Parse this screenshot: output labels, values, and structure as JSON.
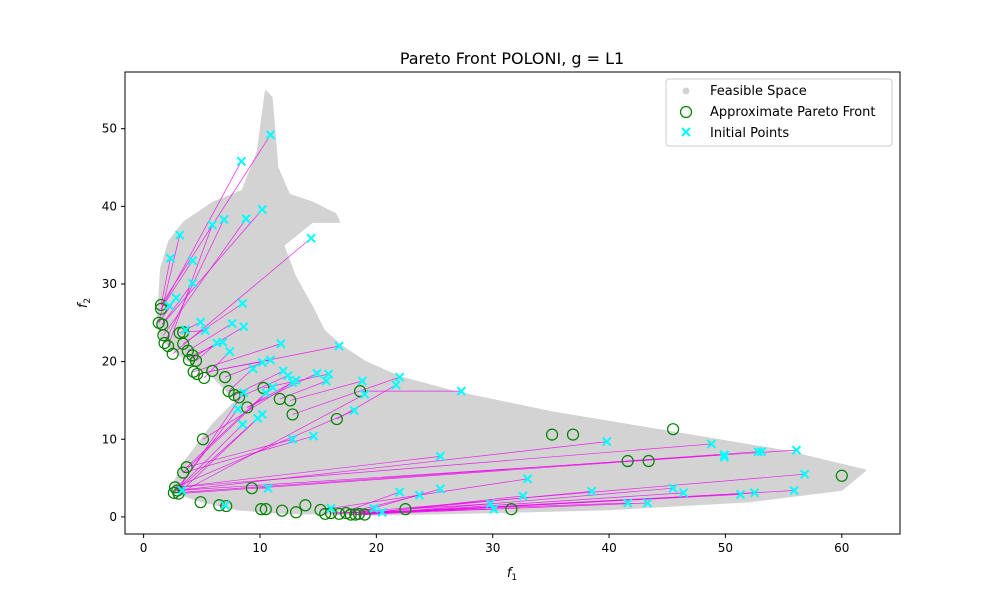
{
  "chart_data": {
    "type": "scatter",
    "title": "Pareto Front POLONI, g = L1",
    "xlabel_main": "f",
    "xlabel_sub": "1",
    "ylabel_main": "f",
    "ylabel_sub": "2",
    "xlim": [
      -1.6,
      65
    ],
    "ylim": [
      -2.2,
      57.3
    ],
    "xticks": [
      0,
      10,
      20,
      30,
      40,
      50,
      60
    ],
    "yticks": [
      0,
      10,
      20,
      30,
      40,
      50
    ],
    "grid": false,
    "legend_position": "top-right",
    "colors": {
      "feasible": "#d3d3d3",
      "front": "#008000",
      "initial": "#00ffff",
      "connector": "#ee00ee"
    },
    "legend": [
      {
        "label": "Feasible Space",
        "marker": "dot"
      },
      {
        "label": "Approximate Pareto Front",
        "marker": "circle"
      },
      {
        "label": "Initial Points",
        "marker": "x"
      }
    ],
    "feasible_region_outline": [
      [
        1.3,
        27
      ],
      [
        1.5,
        32
      ],
      [
        2.2,
        35.5
      ],
      [
        3.5,
        38
      ],
      [
        6,
        40.5
      ],
      [
        8.5,
        42
      ],
      [
        9.8,
        47
      ],
      [
        10.5,
        54.8
      ],
      [
        11,
        54
      ],
      [
        11.5,
        45
      ],
      [
        12.5,
        41.5
      ],
      [
        14.5,
        40.5
      ],
      [
        16.5,
        39
      ],
      [
        16.8,
        38
      ],
      [
        14.5,
        38
      ],
      [
        12,
        35
      ],
      [
        13,
        31
      ],
      [
        14.5,
        27
      ],
      [
        15.5,
        24
      ],
      [
        17,
        22
      ],
      [
        19,
        20
      ],
      [
        22,
        18
      ],
      [
        27,
        16
      ],
      [
        35,
        13.5
      ],
      [
        45,
        11
      ],
      [
        55,
        8.5
      ],
      [
        62,
        6
      ],
      [
        60,
        3.5
      ],
      [
        52,
        2
      ],
      [
        40,
        1
      ],
      [
        30,
        0.6
      ],
      [
        20,
        0.3
      ],
      [
        12,
        0.5
      ],
      [
        8,
        1
      ],
      [
        5,
        2
      ],
      [
        3,
        3
      ],
      [
        2.5,
        4
      ],
      [
        3.5,
        7
      ],
      [
        6,
        12
      ],
      [
        8,
        15
      ],
      [
        6,
        18
      ],
      [
        3,
        21
      ],
      [
        1.5,
        23
      ],
      [
        1.2,
        25
      ]
    ],
    "approximate_pareto_front": [
      [
        1.5,
        27.3
      ],
      [
        1.5,
        26.8
      ],
      [
        1.3,
        25
      ],
      [
        1.6,
        24.8
      ],
      [
        1.7,
        23.4
      ],
      [
        1.8,
        22.4
      ],
      [
        2.1,
        22
      ],
      [
        2.5,
        21
      ],
      [
        3.1,
        23.7
      ],
      [
        3.4,
        23.8
      ],
      [
        3.4,
        22.3
      ],
      [
        3.8,
        21.4
      ],
      [
        3.9,
        20.2
      ],
      [
        4.2,
        20.8
      ],
      [
        4.5,
        20.1
      ],
      [
        4.3,
        18.7
      ],
      [
        4.6,
        18.4
      ],
      [
        5.2,
        17.9
      ],
      [
        5.9,
        18.8
      ],
      [
        7.0,
        18
      ],
      [
        7.3,
        16.2
      ],
      [
        7.8,
        15.7
      ],
      [
        8.2,
        15.4
      ],
      [
        8.9,
        14.1
      ],
      [
        10.3,
        16.6
      ],
      [
        11.7,
        15.2
      ],
      [
        12.6,
        15
      ],
      [
        12.8,
        13.2
      ],
      [
        16.6,
        12.6
      ],
      [
        18.6,
        16.2
      ],
      [
        5.1,
        10
      ],
      [
        3.4,
        5.7
      ],
      [
        3.7,
        6.4
      ],
      [
        2.9,
        3.4
      ],
      [
        2.6,
        3.1
      ],
      [
        3.0,
        3.0
      ],
      [
        2.7,
        3.8
      ],
      [
        9.3,
        3.7
      ],
      [
        4.9,
        1.9
      ],
      [
        6.5,
        1.5
      ],
      [
        7.1,
        1.4
      ],
      [
        10.1,
        1.0
      ],
      [
        10.5,
        1.0
      ],
      [
        11.9,
        0.8
      ],
      [
        13.1,
        0.6
      ],
      [
        13.9,
        1.5
      ],
      [
        15.2,
        0.9
      ],
      [
        15.6,
        0.4
      ],
      [
        16.1,
        0.5
      ],
      [
        16.8,
        0.4
      ],
      [
        17.4,
        0.5
      ],
      [
        17.8,
        0.3
      ],
      [
        18.2,
        0.3
      ],
      [
        18.5,
        0.4
      ],
      [
        19.0,
        0.3
      ],
      [
        22.5,
        1.0
      ],
      [
        31.6,
        1.0
      ],
      [
        35.1,
        10.6
      ],
      [
        36.9,
        10.6
      ],
      [
        41.6,
        7.2
      ],
      [
        43.4,
        7.2
      ],
      [
        45.5,
        11.3
      ],
      [
        60.0,
        5.3
      ]
    ],
    "initial_points": [
      [
        10.9,
        49.2
      ],
      [
        8.4,
        45.8
      ],
      [
        10.2,
        39.6
      ],
      [
        8.8,
        38.4
      ],
      [
        6.9,
        38.3
      ],
      [
        5.9,
        37.6
      ],
      [
        3.1,
        36.3
      ],
      [
        14.4,
        35.9
      ],
      [
        4.2,
        33.0
      ],
      [
        2.3,
        33.3
      ],
      [
        4.2,
        30.1
      ],
      [
        2.8,
        28.2
      ],
      [
        8.5,
        27.5
      ],
      [
        2.2,
        27.2
      ],
      [
        4.9,
        25.1
      ],
      [
        7.6,
        24.9
      ],
      [
        8.6,
        24.5
      ],
      [
        5.3,
        24.0
      ],
      [
        3.6,
        24.1
      ],
      [
        6.8,
        22.5
      ],
      [
        6.3,
        22.4
      ],
      [
        11.8,
        22.3
      ],
      [
        16.8,
        22.0
      ],
      [
        7.4,
        21.3
      ],
      [
        10.9,
        20.2
      ],
      [
        10.2,
        19.9
      ],
      [
        9.4,
        19.1
      ],
      [
        12.0,
        18.8
      ],
      [
        12.4,
        18.2
      ],
      [
        14.9,
        18.5
      ],
      [
        15.9,
        18.4
      ],
      [
        15.7,
        17.5
      ],
      [
        18.8,
        17.5
      ],
      [
        22.0,
        18.0
      ],
      [
        21.7,
        17.0
      ],
      [
        13.1,
        17.6
      ],
      [
        12.8,
        17.3
      ],
      [
        11.1,
        16.7
      ],
      [
        10.5,
        16.0
      ],
      [
        8.6,
        16.0
      ],
      [
        19.0,
        15.8
      ],
      [
        27.3,
        16.2
      ],
      [
        8.1,
        13.9
      ],
      [
        18.1,
        13.7
      ],
      [
        10.2,
        13.2
      ],
      [
        9.8,
        12.7
      ],
      [
        8.5,
        11.9
      ],
      [
        14.6,
        10.4
      ],
      [
        12.8,
        10.0
      ],
      [
        39.8,
        9.7
      ],
      [
        48.8,
        9.4
      ],
      [
        49.9,
        8.0
      ],
      [
        49.9,
        7.7
      ],
      [
        52.8,
        8.4
      ],
      [
        53.1,
        8.4
      ],
      [
        56.1,
        8.6
      ],
      [
        25.5,
        7.8
      ],
      [
        56.8,
        5.5
      ],
      [
        33.0,
        4.9
      ],
      [
        10.7,
        3.7
      ],
      [
        22.0,
        3.2
      ],
      [
        23.7,
        2.8
      ],
      [
        25.5,
        3.6
      ],
      [
        32.6,
        2.7
      ],
      [
        38.5,
        3.3
      ],
      [
        45.5,
        3.7
      ],
      [
        46.4,
        3.1
      ],
      [
        51.3,
        2.9
      ],
      [
        52.5,
        3.1
      ],
      [
        55.9,
        3.4
      ],
      [
        29.8,
        1.7
      ],
      [
        30.1,
        1.0
      ],
      [
        41.6,
        1.8
      ],
      [
        43.3,
        1.8
      ],
      [
        16.1,
        1.1
      ],
      [
        19.8,
        1.1
      ],
      [
        20.5,
        0.6
      ],
      [
        7.0,
        1.5
      ],
      [
        3.3,
        3.4
      ]
    ],
    "connections": [
      [
        [
          10.9,
          49.2
        ],
        [
          1.5,
          27.3
        ]
      ],
      [
        [
          8.4,
          45.8
        ],
        [
          1.5,
          26.8
        ]
      ],
      [
        [
          10.2,
          39.6
        ],
        [
          1.6,
          24.8
        ]
      ],
      [
        [
          8.8,
          38.4
        ],
        [
          1.7,
          23.4
        ]
      ],
      [
        [
          6.9,
          38.3
        ],
        [
          1.8,
          22.4
        ]
      ],
      [
        [
          5.9,
          37.6
        ],
        [
          2.1,
          22
        ]
      ],
      [
        [
          3.1,
          36.3
        ],
        [
          1.3,
          25
        ]
      ],
      [
        [
          14.4,
          35.9
        ],
        [
          2.5,
          21
        ]
      ],
      [
        [
          4.2,
          33.0
        ],
        [
          1.5,
          26.8
        ]
      ],
      [
        [
          2.3,
          33.3
        ],
        [
          1.5,
          27.3
        ]
      ],
      [
        [
          4.2,
          30.1
        ],
        [
          1.6,
          24.8
        ]
      ],
      [
        [
          2.8,
          28.2
        ],
        [
          1.3,
          25
        ]
      ],
      [
        [
          8.5,
          27.5
        ],
        [
          3.4,
          22.3
        ]
      ],
      [
        [
          2.2,
          27.2
        ],
        [
          1.5,
          27.3
        ]
      ],
      [
        [
          4.9,
          25.1
        ],
        [
          3.1,
          23.7
        ]
      ],
      [
        [
          7.6,
          24.9
        ],
        [
          3.8,
          21.4
        ]
      ],
      [
        [
          8.6,
          24.5
        ],
        [
          3.9,
          20.2
        ]
      ],
      [
        [
          5.3,
          24.0
        ],
        [
          3.4,
          23.8
        ]
      ],
      [
        [
          3.6,
          24.1
        ],
        [
          3.4,
          23.8
        ]
      ],
      [
        [
          6.8,
          22.5
        ],
        [
          4.2,
          20.8
        ]
      ],
      [
        [
          6.3,
          22.4
        ],
        [
          4.5,
          20.1
        ]
      ],
      [
        [
          11.8,
          22.3
        ],
        [
          4.3,
          18.7
        ]
      ],
      [
        [
          16.8,
          22.0
        ],
        [
          4.6,
          18.4
        ]
      ],
      [
        [
          7.4,
          21.3
        ],
        [
          5.2,
          17.9
        ]
      ],
      [
        [
          10.9,
          20.2
        ],
        [
          5.9,
          18.8
        ]
      ],
      [
        [
          10.2,
          19.9
        ],
        [
          7.0,
          18
        ]
      ],
      [
        [
          9.4,
          19.1
        ],
        [
          7.3,
          16.2
        ]
      ],
      [
        [
          12.0,
          18.8
        ],
        [
          7.8,
          15.7
        ]
      ],
      [
        [
          12.4,
          18.2
        ],
        [
          8.2,
          15.4
        ]
      ],
      [
        [
          14.9,
          18.5
        ],
        [
          8.9,
          14.1
        ]
      ],
      [
        [
          15.9,
          18.4
        ],
        [
          10.3,
          16.6
        ]
      ],
      [
        [
          15.7,
          17.5
        ],
        [
          11.7,
          15.2
        ]
      ],
      [
        [
          18.8,
          17.5
        ],
        [
          12.6,
          15
        ]
      ],
      [
        [
          22.0,
          18.0
        ],
        [
          12.8,
          13.2
        ]
      ],
      [
        [
          21.7,
          17.0
        ],
        [
          16.6,
          12.6
        ]
      ],
      [
        [
          27.3,
          16.2
        ],
        [
          18.6,
          16.2
        ]
      ],
      [
        [
          13.1,
          17.6
        ],
        [
          8.9,
          14.1
        ]
      ],
      [
        [
          12.8,
          17.3
        ],
        [
          5.1,
          10
        ]
      ],
      [
        [
          11.1,
          16.7
        ],
        [
          3.4,
          5.7
        ]
      ],
      [
        [
          10.5,
          16.0
        ],
        [
          3.7,
          6.4
        ]
      ],
      [
        [
          8.6,
          16.0
        ],
        [
          2.9,
          3.4
        ]
      ],
      [
        [
          19.0,
          15.8
        ],
        [
          3.0,
          3.0
        ]
      ],
      [
        [
          8.1,
          13.9
        ],
        [
          2.6,
          3.1
        ]
      ],
      [
        [
          18.1,
          13.7
        ],
        [
          2.7,
          3.8
        ]
      ],
      [
        [
          10.2,
          13.2
        ],
        [
          2.9,
          3.4
        ]
      ],
      [
        [
          9.8,
          12.7
        ],
        [
          3.0,
          3.0
        ]
      ],
      [
        [
          8.5,
          11.9
        ],
        [
          2.6,
          3.1
        ]
      ],
      [
        [
          14.6,
          10.4
        ],
        [
          3.4,
          5.7
        ]
      ],
      [
        [
          12.8,
          10.0
        ],
        [
          3.7,
          6.4
        ]
      ],
      [
        [
          39.8,
          9.7
        ],
        [
          2.9,
          3.4
        ]
      ],
      [
        [
          48.8,
          9.4
        ],
        [
          2.7,
          3.8
        ]
      ],
      [
        [
          49.9,
          8.0
        ],
        [
          3.0,
          3.0
        ]
      ],
      [
        [
          52.8,
          8.4
        ],
        [
          2.6,
          3.1
        ]
      ],
      [
        [
          56.1,
          8.6
        ],
        [
          2.9,
          3.4
        ]
      ],
      [
        [
          25.5,
          7.8
        ],
        [
          2.7,
          3.8
        ]
      ],
      [
        [
          56.8,
          5.5
        ],
        [
          16.6,
          0.4
        ]
      ],
      [
        [
          33.0,
          4.9
        ],
        [
          15.2,
          0.9
        ]
      ],
      [
        [
          10.7,
          3.7
        ],
        [
          9.3,
          3.7
        ]
      ],
      [
        [
          22.0,
          3.2
        ],
        [
          16.8,
          0.4
        ]
      ],
      [
        [
          23.7,
          2.8
        ],
        [
          17.4,
          0.5
        ]
      ],
      [
        [
          25.5,
          3.6
        ],
        [
          17.8,
          0.3
        ]
      ],
      [
        [
          32.6,
          2.7
        ],
        [
          18.2,
          0.3
        ]
      ],
      [
        [
          38.5,
          3.3
        ],
        [
          18.5,
          0.4
        ]
      ],
      [
        [
          45.5,
          3.7
        ],
        [
          19.0,
          0.3
        ]
      ],
      [
        [
          46.4,
          3.1
        ],
        [
          18.2,
          0.3
        ]
      ],
      [
        [
          51.3,
          2.9
        ],
        [
          17.8,
          0.3
        ]
      ],
      [
        [
          52.5,
          3.1
        ],
        [
          18.5,
          0.4
        ]
      ],
      [
        [
          55.9,
          3.4
        ],
        [
          19.0,
          0.3
        ]
      ],
      [
        [
          29.8,
          1.7
        ],
        [
          22.5,
          1.0
        ]
      ],
      [
        [
          30.1,
          1.0
        ],
        [
          16.1,
          0.5
        ]
      ],
      [
        [
          41.6,
          1.8
        ],
        [
          17.4,
          0.5
        ]
      ],
      [
        [
          43.3,
          1.8
        ],
        [
          18.2,
          0.3
        ]
      ],
      [
        [
          16.1,
          1.1
        ],
        [
          15.6,
          0.4
        ]
      ],
      [
        [
          19.8,
          1.1
        ],
        [
          18.5,
          0.4
        ]
      ],
      [
        [
          20.5,
          0.6
        ],
        [
          19.0,
          0.3
        ]
      ],
      [
        [
          7.0,
          1.5
        ],
        [
          6.5,
          1.5
        ]
      ],
      [
        [
          3.3,
          3.4
        ],
        [
          2.9,
          3.4
        ]
      ]
    ]
  }
}
